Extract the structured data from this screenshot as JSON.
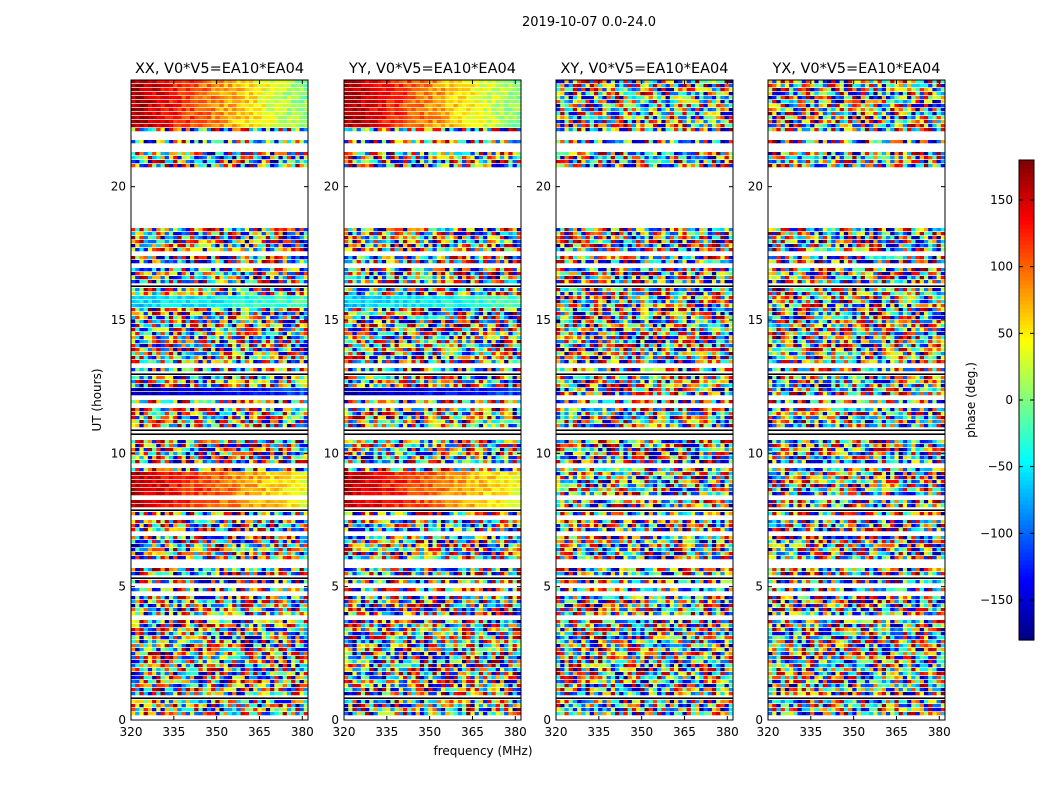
{
  "chart_data": {
    "type": "heatmap",
    "suptitle": "2019-10-07 0.0-24.0",
    "xlabel": "frequency (MHz)",
    "ylabel": "UT (hours)",
    "xlim": [
      320,
      382
    ],
    "ylim": [
      0,
      24
    ],
    "xticks": [
      320,
      335,
      350,
      365,
      380
    ],
    "yticks": [
      0,
      5,
      10,
      15,
      20
    ],
    "panels": [
      {
        "title": "XX, V0*V5=EA10*EA04",
        "pol": "XX"
      },
      {
        "title": "YY, V0*V5=EA10*EA04",
        "pol": "YY"
      },
      {
        "title": "XY, V0*V5=EA10*EA04",
        "pol": "XY"
      },
      {
        "title": "YX, V0*V5=EA10*EA04",
        "pol": "YX"
      }
    ],
    "colorbar": {
      "label": "phase (deg.)",
      "vmin": -180,
      "vmax": 180,
      "ticks": [
        150,
        100,
        50,
        0,
        -50,
        -100,
        -150
      ],
      "colormap": "jet"
    },
    "flagged_ut_ranges_hours": [
      [
        18.6,
        20.7
      ],
      [
        16.95,
        17.1
      ],
      [
        9.4,
        9.55
      ],
      [
        5.8,
        5.95
      ]
    ],
    "coherent_phase_bands_hours": [
      {
        "ut": [
          22.2,
          24.0
        ],
        "pols": [
          "XX",
          "YY"
        ],
        "phase_range_deg": [
          170,
          0
        ]
      },
      {
        "ut": [
          15.45,
          15.9
        ],
        "pols": [
          "XX",
          "YY"
        ],
        "phase_range_deg": [
          -60,
          -20
        ]
      },
      {
        "ut": [
          12.0,
          12.4
        ],
        "pols": [
          "XX",
          "YY"
        ],
        "phase_range_deg": [
          -170,
          -110
        ]
      },
      {
        "ut": [
          7.9,
          9.3
        ],
        "pols": [
          "XX",
          "YY"
        ],
        "phase_range_deg": [
          160,
          40
        ]
      }
    ]
  }
}
